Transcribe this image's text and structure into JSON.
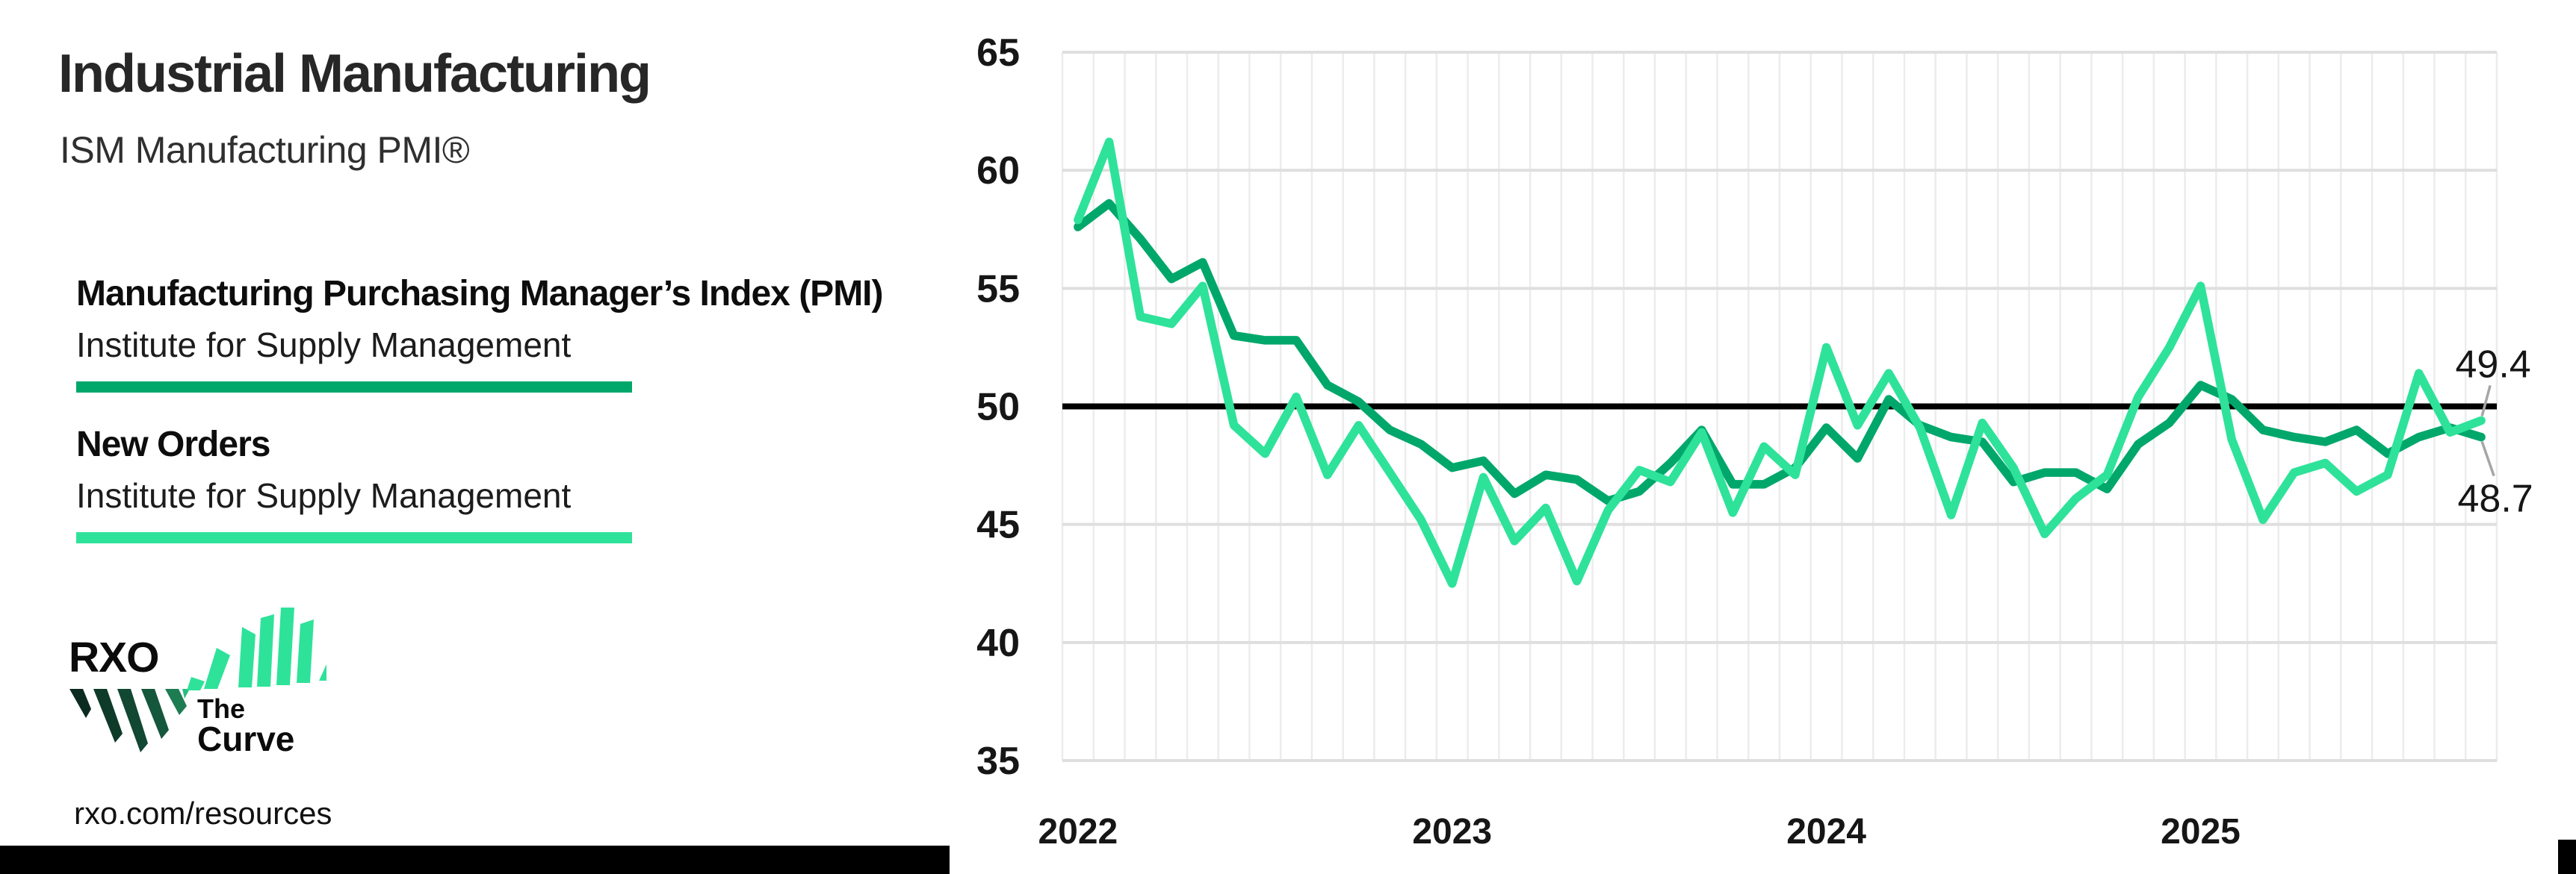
{
  "header": {
    "title": "Industrial Manufacturing",
    "subtitle": "ISM Manufacturing PMI®"
  },
  "legend": {
    "items": [
      {
        "label": "Manufacturing Purchasing Manager’s Index (PMI)",
        "source": "Institute for Supply Management",
        "color": "#00a76b"
      },
      {
        "label": "New Orders",
        "source": "Institute for Supply Management",
        "color": "#2ee29a"
      }
    ]
  },
  "logo": {
    "brand": "RXO",
    "tagline_line1": "The",
    "tagline_line2": "Curve"
  },
  "footer": {
    "link": "rxo.com/resources"
  },
  "colors": {
    "pmi_green": "#00a76b",
    "mint_green": "#2ee29a",
    "reference_black": "#000000"
  },
  "chart_data": {
    "type": "line",
    "title": "ISM Manufacturing PMI",
    "xlabel": "",
    "ylabel": "",
    "ylim": [
      35,
      65
    ],
    "yticks": [
      35,
      40,
      45,
      50,
      55,
      60,
      65
    ],
    "reference_line": 50,
    "grid": true,
    "legend_position": "left-panel",
    "year_ticks": [
      "2022",
      "2023",
      "2024",
      "2025"
    ],
    "months": [
      "Jan 2022",
      "Feb 2022",
      "Mar 2022",
      "Apr 2022",
      "May 2022",
      "Jun 2022",
      "Jul 2022",
      "Aug 2022",
      "Sep 2022",
      "Oct 2022",
      "Nov 2022",
      "Dec 2022",
      "Jan 2023",
      "Feb 2023",
      "Mar 2023",
      "Apr 2023",
      "May 2023",
      "Jun 2023",
      "Jul 2023",
      "Aug 2023",
      "Sep 2023",
      "Oct 2023",
      "Nov 2023",
      "Dec 2023",
      "Jan 2024",
      "Feb 2024",
      "Mar 2024",
      "Apr 2024",
      "May 2024",
      "Jun 2024",
      "Jul 2024",
      "Aug 2024",
      "Sep 2024",
      "Oct 2024",
      "Nov 2024",
      "Dec 2024",
      "Jan 2025",
      "Feb 2025",
      "Mar 2025",
      "Apr 2025",
      "May 2025",
      "Jun 2025",
      "Jul 2025",
      "Aug 2025",
      "Sep 2025",
      "Oct 2025"
    ],
    "series": [
      {
        "name": "Manufacturing Purchasing Manager’s Index (PMI)",
        "color": "#00a76b",
        "values": [
          57.6,
          58.6,
          57.1,
          55.4,
          56.1,
          53.0,
          52.8,
          52.8,
          50.9,
          50.2,
          49.0,
          48.4,
          47.4,
          47.7,
          46.3,
          47.1,
          46.9,
          46.0,
          46.4,
          47.6,
          49.0,
          46.7,
          46.7,
          47.4,
          49.1,
          47.8,
          50.3,
          49.2,
          48.7,
          48.5,
          46.8,
          47.2,
          47.2,
          46.5,
          48.4,
          49.3,
          50.9,
          50.3,
          49.0,
          48.7,
          48.5,
          49.0,
          48.0,
          48.7,
          49.1,
          48.7
        ]
      },
      {
        "name": "New Orders",
        "color": "#2ee29a",
        "values": [
          57.9,
          61.2,
          53.8,
          53.5,
          55.1,
          49.2,
          48.0,
          50.4,
          47.1,
          49.2,
          47.2,
          45.2,
          42.5,
          47.0,
          44.3,
          45.7,
          42.6,
          45.6,
          47.3,
          46.8,
          48.9,
          45.5,
          48.3,
          47.1,
          52.5,
          49.2,
          51.4,
          49.1,
          45.4,
          49.3,
          47.4,
          44.6,
          46.1,
          47.1,
          50.4,
          52.5,
          55.1,
          48.6,
          45.2,
          47.2,
          47.6,
          46.4,
          47.1,
          51.4,
          48.9,
          49.4
        ]
      }
    ],
    "annotations": [
      {
        "series": "New Orders",
        "text": "49.4",
        "position": "above"
      },
      {
        "series": "Manufacturing Purchasing Manager’s Index (PMI)",
        "text": "48.7",
        "position": "below"
      }
    ]
  }
}
